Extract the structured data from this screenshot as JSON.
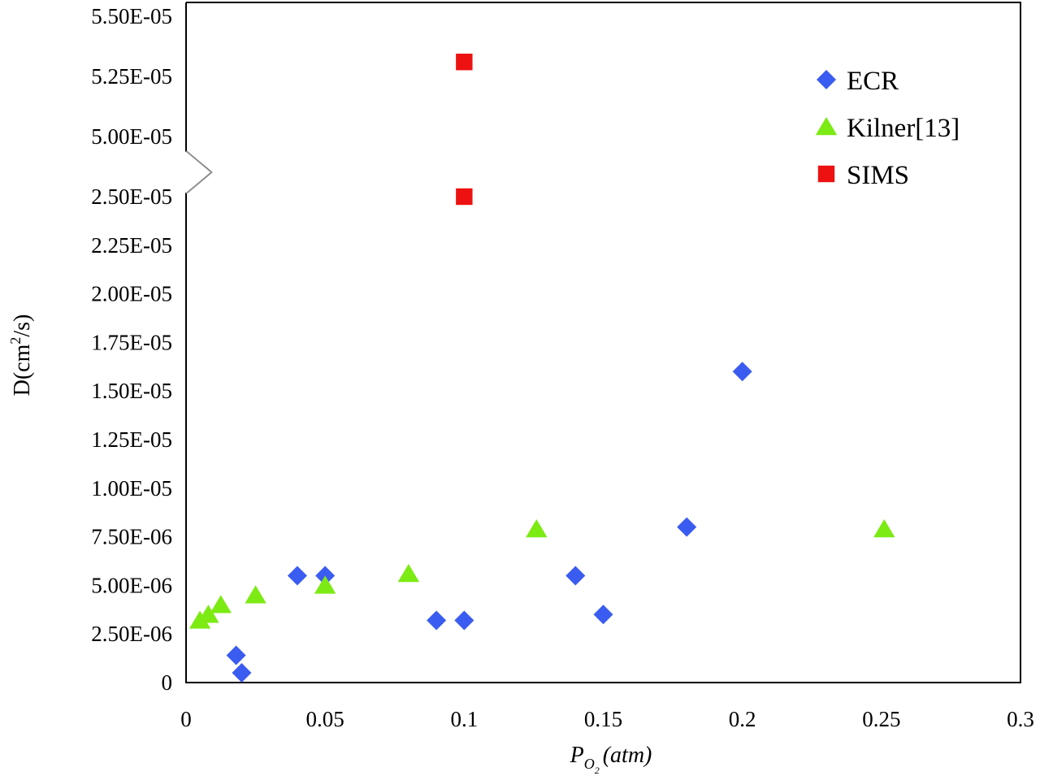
{
  "chart_data": {
    "type": "scatter",
    "title": "",
    "xlabel": {
      "symbol": "P",
      "subscript": "O",
      "subscript2": "2",
      "unit": "(atm)"
    },
    "ylabel": {
      "base": "D(cm",
      "sup": "2",
      "tail": "/s)"
    },
    "xlim": [
      0,
      0.3
    ],
    "ylim_lower": [
      0,
      2.5e-05
    ],
    "ylim_upper": [
      5e-05,
      5.5e-05
    ],
    "axis_break": "between 2.50E-05 and 5.00E-05",
    "grid": false,
    "legend_position": "top-right",
    "x_ticks": [
      {
        "value": 0,
        "label": "0"
      },
      {
        "value": 0.05,
        "label": "0.05"
      },
      {
        "value": 0.1,
        "label": "0.1"
      },
      {
        "value": 0.15,
        "label": "0.15"
      },
      {
        "value": 0.2,
        "label": "0.2"
      },
      {
        "value": 0.25,
        "label": "0.25"
      },
      {
        "value": 0.3,
        "label": "0.3"
      }
    ],
    "y_ticks": [
      {
        "value": 0,
        "label": "0"
      },
      {
        "value": 2.5e-06,
        "label": "2.50E-06"
      },
      {
        "value": 5e-06,
        "label": "5.00E-06"
      },
      {
        "value": 7.5e-06,
        "label": "7.50E-06"
      },
      {
        "value": 1e-05,
        "label": "1.00E-05"
      },
      {
        "value": 1.25e-05,
        "label": "1.25E-05"
      },
      {
        "value": 1.5e-05,
        "label": "1.50E-05"
      },
      {
        "value": 1.75e-05,
        "label": "1.75E-05"
      },
      {
        "value": 2e-05,
        "label": "2.00E-05"
      },
      {
        "value": 2.25e-05,
        "label": "2.25E-05"
      },
      {
        "value": 2.5e-05,
        "label": "2.50E-05"
      },
      {
        "value": 5e-05,
        "label": "5.00E-05"
      },
      {
        "value": 5.25e-05,
        "label": "5.25E-05"
      },
      {
        "value": 5.5e-05,
        "label": "5.50E-05"
      }
    ],
    "series": [
      {
        "name": "ECR",
        "marker": "diamond",
        "color": "#3b5cf0",
        "points": [
          {
            "x": 0.018,
            "y": 1.4e-06
          },
          {
            "x": 0.02,
            "y": 5e-07
          },
          {
            "x": 0.04,
            "y": 5.5e-06
          },
          {
            "x": 0.05,
            "y": 5.5e-06
          },
          {
            "x": 0.09,
            "y": 3.2e-06
          },
          {
            "x": 0.1,
            "y": 3.2e-06
          },
          {
            "x": 0.14,
            "y": 5.5e-06
          },
          {
            "x": 0.15,
            "y": 3.5e-06
          },
          {
            "x": 0.18,
            "y": 8e-06
          },
          {
            "x": 0.2,
            "y": 1.6e-05
          }
        ]
      },
      {
        "name": "Kilner[13]",
        "marker": "triangle",
        "color": "#7cea13",
        "points": [
          {
            "x": 0.005,
            "y": 3.2e-06
          },
          {
            "x": 0.008,
            "y": 3.5e-06
          },
          {
            "x": 0.0125,
            "y": 4e-06
          },
          {
            "x": 0.025,
            "y": 4.5e-06
          },
          {
            "x": 0.05,
            "y": 5e-06
          },
          {
            "x": 0.08,
            "y": 5.6e-06
          },
          {
            "x": 0.126,
            "y": 7.9e-06
          },
          {
            "x": 0.251,
            "y": 7.9e-06
          }
        ]
      },
      {
        "name": "SIMS",
        "marker": "square",
        "color": "#ee1111",
        "points": [
          {
            "x": 0.1,
            "y": 2.5e-05
          },
          {
            "x": 0.1,
            "y": 5.31e-05
          }
        ]
      }
    ]
  }
}
